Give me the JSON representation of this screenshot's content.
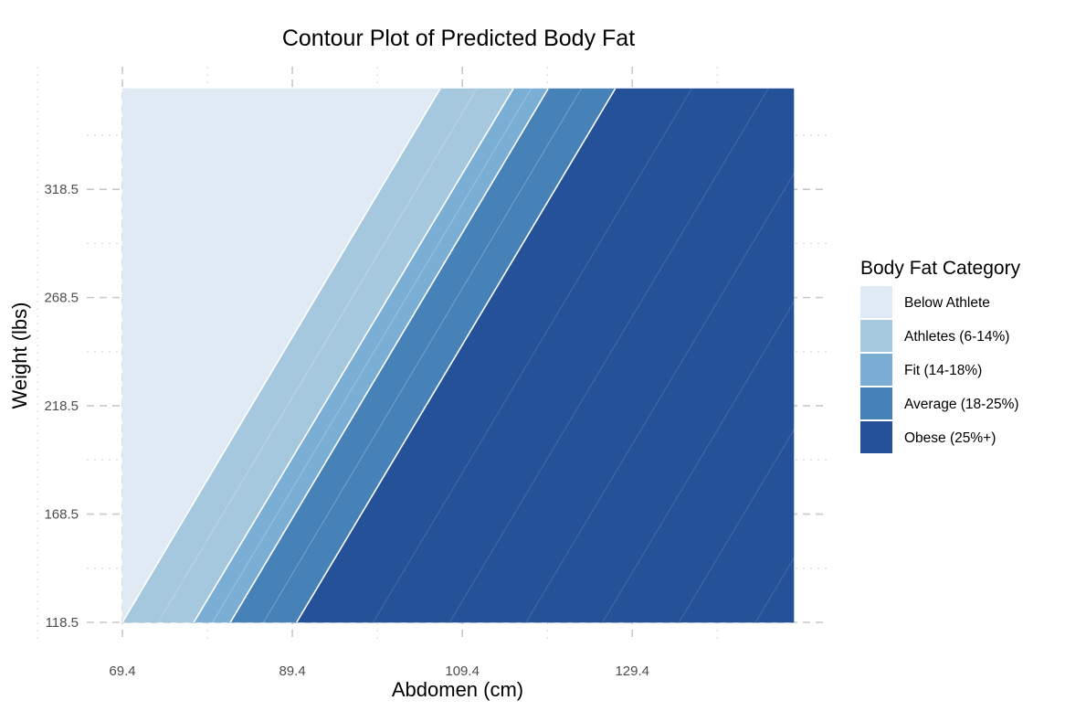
{
  "chart_data": {
    "type": "contour",
    "title": "Contour Plot of Predicted Body Fat",
    "xlabel": "Abdomen (cm)",
    "ylabel": "Weight (lbs)",
    "xlim": [
      69.4,
      148.4
    ],
    "ylim": [
      118.5,
      365
    ],
    "x_ticks": [
      69.4,
      89.4,
      109.4,
      129.4
    ],
    "y_ticks": [
      118.5,
      168.5,
      218.5,
      268.5,
      318.5
    ],
    "x_tick_labels": [
      "69.4",
      "89.4",
      "109.4",
      "129.4"
    ],
    "y_tick_labels": [
      "118.5",
      "168.5",
      "218.5",
      "268.5",
      "318.5"
    ],
    "grid": true,
    "legend": {
      "title": "Body Fat Category",
      "placement": "right",
      "entries": [
        {
          "label": "Below Athlete",
          "color": "#dfeaf4"
        },
        {
          "label": "Athletes (6-14%)",
          "color": "#a6c8df"
        },
        {
          "label": "Fit (14-18%)",
          "color": "#7baed4"
        },
        {
          "label": "Average (18-25%)",
          "color": "#4682b8"
        },
        {
          "label": "Obese (25%+)",
          "color": "#245198"
        }
      ]
    },
    "bands": [
      {
        "category": "Below Athlete",
        "color": "#dfeaf4"
      },
      {
        "category": "Athletes (6-14%)",
        "color": "#a6c8df"
      },
      {
        "category": "Fit (14-18%)",
        "color": "#7baed4"
      },
      {
        "category": "Average (18-25%)",
        "color": "#4682b8"
      },
      {
        "category": "Obese (25%+)",
        "color": "#245198"
      }
    ],
    "boundaries": [
      {
        "between": [
          "Below Athlete",
          "Athletes (6-14%)"
        ],
        "abdomen_at_min_weight": 69.4,
        "abdomen_at_max_weight": 106.8
      },
      {
        "between": [
          "Athletes (6-14%)",
          "Fit (14-18%)"
        ],
        "abdomen_at_min_weight": 77.8,
        "abdomen_at_max_weight": 115.4
      },
      {
        "between": [
          "Fit (14-18%)",
          "Average (18-25%)"
        ],
        "abdomen_at_min_weight": 82.1,
        "abdomen_at_max_weight": 119.5
      },
      {
        "between": [
          "Average (18-25%)",
          "Obese (25%+)"
        ],
        "abdomen_at_min_weight": 89.9,
        "abdomen_at_max_weight": 127.4
      }
    ]
  }
}
